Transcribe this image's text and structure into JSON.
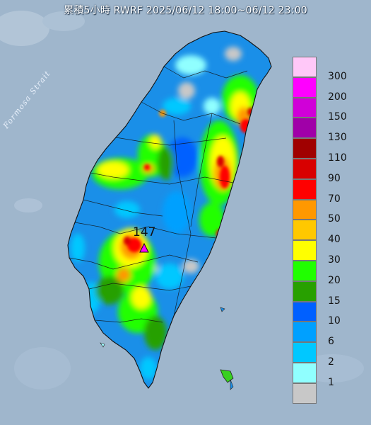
{
  "title": "累積5小時 RWRF 2025/06/12 18:00~06/12 23:00",
  "map": {
    "strait_label": "Formosa Strait",
    "max_value": "147"
  },
  "legend": {
    "items": [
      {
        "label": "300",
        "color": "#ffc8f8"
      },
      {
        "label": "200",
        "color": "#ff00ff"
      },
      {
        "label": "150",
        "color": "#d000d8"
      },
      {
        "label": "130",
        "color": "#a000a8"
      },
      {
        "label": "110",
        "color": "#a00000"
      },
      {
        "label": "90",
        "color": "#d80000"
      },
      {
        "label": "70",
        "color": "#ff0000"
      },
      {
        "label": "50",
        "color": "#ff9800"
      },
      {
        "label": "40",
        "color": "#ffc800"
      },
      {
        "label": "30",
        "color": "#ffff00"
      },
      {
        "label": "20",
        "color": "#20ff00"
      },
      {
        "label": "15",
        "color": "#28a000"
      },
      {
        "label": "10",
        "color": "#0060ff"
      },
      {
        "label": "6",
        "color": "#00a0ff"
      },
      {
        "label": "2",
        "color": "#00c8ff"
      },
      {
        "label": "1",
        "color": "#90ffff"
      },
      {
        "label": "",
        "color": "#c8c8c8"
      }
    ]
  },
  "colors": {
    "sea": "#9fb6cc",
    "land_base": "#1a8fe8",
    "max_marker": "#ff00ff"
  }
}
